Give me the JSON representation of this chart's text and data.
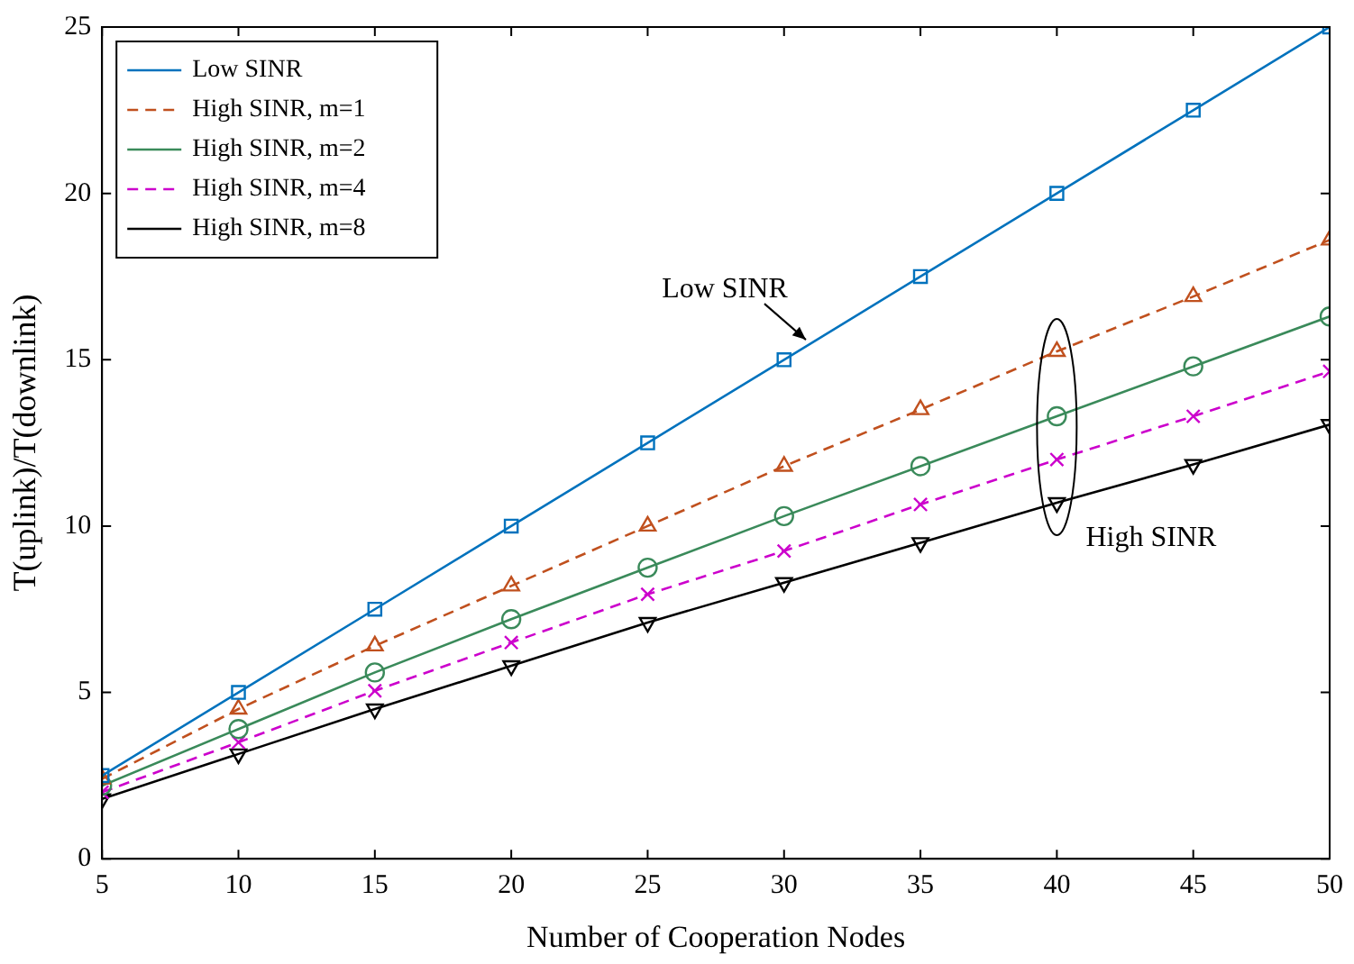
{
  "chart_data": {
    "type": "line",
    "xlabel": "Number of Cooperation Nodes",
    "ylabel": "T(uplink)/T(downlink)",
    "x": [
      5,
      10,
      15,
      20,
      25,
      30,
      35,
      40,
      45,
      50
    ],
    "series": [
      {
        "name": "Low SINR",
        "color": "#0072bd",
        "marker": "square",
        "line_style": "solid",
        "values": [
          2.5,
          5,
          7.5,
          10,
          12.5,
          15,
          17.5,
          20,
          22.5,
          25
        ]
      },
      {
        "name": "High SINR, m=1",
        "color": "#c0501e",
        "marker": "triangle",
        "line_style": "dashed",
        "values": [
          2.4,
          4.5,
          6.4,
          8.2,
          10.0,
          11.8,
          13.5,
          15.25,
          16.9,
          18.6
        ]
      },
      {
        "name": "High SINR, m=2",
        "color": "#3a8a5a",
        "marker": "circle",
        "line_style": "solid",
        "values": [
          2.2,
          3.9,
          5.6,
          7.2,
          8.75,
          10.3,
          11.8,
          13.3,
          14.8,
          16.3
        ]
      },
      {
        "name": "High SINR, m=4",
        "color": "#cc00cc",
        "marker": "cross",
        "line_style": "dashed",
        "values": [
          2.0,
          3.5,
          5.05,
          6.5,
          7.95,
          9.25,
          10.65,
          12.0,
          13.3,
          14.65
        ]
      },
      {
        "name": "High SINR, m=8",
        "color": "#000000",
        "marker": "triangle-down",
        "line_style": "solid",
        "values": [
          1.8,
          3.15,
          4.5,
          5.8,
          7.1,
          8.3,
          9.5,
          10.7,
          11.85,
          13.05
        ]
      }
    ],
    "annotations": [
      {
        "text": "Low SINR",
        "x": 30.8,
        "y": 15.6
      },
      "High SINR"
    ],
    "xlim": [
      5,
      50
    ],
    "xticks": [
      5,
      10,
      15,
      20,
      25,
      30,
      35,
      40,
      45,
      50
    ],
    "ylim": [
      0,
      25
    ],
    "yticks": [
      0,
      5,
      10,
      15,
      20,
      25
    ],
    "grid": false,
    "legend": "top left"
  }
}
